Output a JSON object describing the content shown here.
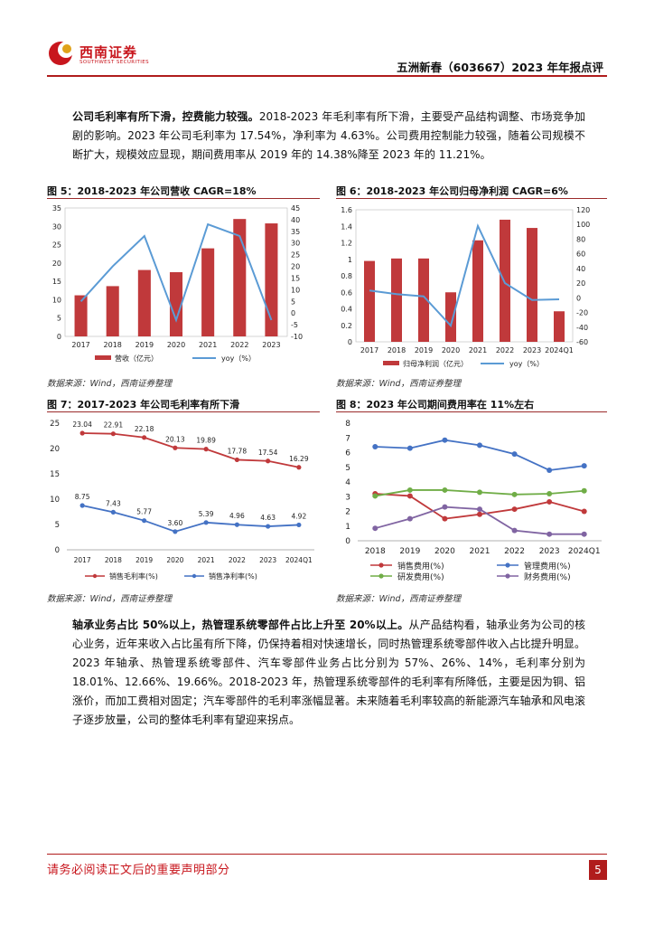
{
  "header": {
    "logo_text": "西南证券",
    "logo_sub": "SOUTHWEST SECURITIES",
    "title": "五洲新春（603667）2023 年年报点评"
  },
  "para1": {
    "bold": "公司毛利率有所下滑，控费能力较强。",
    "text": "2018-2023 年毛利率有所下滑，主要受产品结构调整、市场竞争加剧的影响。2023 年公司毛利率为 17.54%，净利率为 4.63%。公司费用控制能力较强，随着公司规模不断扩大，规模效应显现，期间费用率从 2019 年的 14.38%降至 2023 年的 11.21%。"
  },
  "para2": {
    "bold": "轴承业务占比 50%以上，热管理系统零部件占比上升至 20%以上。",
    "text": "从产品结构看，轴承业务为公司的核心业务，近年来收入占比虽有所下降，仍保持着相对快速增长，同时热管理系统零部件收入占比提升明显。2023 年轴承、热管理系统零部件、汽车零部件业务占比分别为 57%、26%、14%，毛利率分别为 18.01%、12.66%、19.66%。2018-2023 年，热管理系统零部件的毛利率有所降低，主要是因为铜、铝涨价，而加工费相对固定；汽车零部件的毛利率涨幅显著。未来随着毛利率较高的新能源汽车轴承和风电滚子逐步放量，公司的整体毛利率有望迎来拐点。"
  },
  "figures": {
    "f5_title": "图 5：2018-2023 年公司营收 CAGR=18%",
    "f6_title": "图 6：2018-2023 年公司归母净利润 CAGR=6%",
    "f7_title": "图 7：2017-2023 年公司毛利率有所下滑",
    "f8_title": "图 8：2023 年公司期间费用率在 11%左右",
    "source": "数据来源：Wind，西南证券整理"
  },
  "footer": {
    "notice": "请务必阅读正文后的重要声明部分",
    "page": "5"
  },
  "colors": {
    "bar_red": "#c0393b",
    "line_blue": "#5b9bd5",
    "brand_red": "#c8161d"
  },
  "chart_data": [
    {
      "id": "f5",
      "type": "bar+line",
      "categories": [
        "2017",
        "2018",
        "2019",
        "2020",
        "2021",
        "2022",
        "2023"
      ],
      "series": [
        {
          "name": "营收（亿元）",
          "type": "bar",
          "axis": "left",
          "values": [
            11.2,
            13.7,
            18.1,
            17.5,
            24.0,
            32.0,
            30.8
          ]
        },
        {
          "name": "yoy（%）",
          "type": "line",
          "axis": "right",
          "values": [
            5,
            20,
            33,
            -3,
            38,
            33,
            -3
          ]
        }
      ],
      "left_ylim": [
        0,
        35
      ],
      "left_ticks": [
        0,
        5,
        10,
        15,
        20,
        25,
        30,
        35
      ],
      "right_ylim": [
        -10,
        45
      ],
      "right_ticks": [
        -10,
        -5,
        0,
        5,
        10,
        15,
        20,
        25,
        30,
        35,
        40,
        45
      ],
      "legend": [
        "营收（亿元）",
        "yoy（%）"
      ]
    },
    {
      "id": "f6",
      "type": "bar+line",
      "categories": [
        "2017",
        "2018",
        "2019",
        "2020",
        "2021",
        "2022",
        "2023",
        "2024Q1"
      ],
      "series": [
        {
          "name": "归母净利润（亿元）",
          "type": "bar",
          "axis": "left",
          "values": [
            0.98,
            1.01,
            1.01,
            0.6,
            1.23,
            1.48,
            1.38,
            0.37
          ]
        },
        {
          "name": "yoy（%）",
          "type": "line",
          "axis": "right",
          "values": [
            10,
            5,
            2,
            -38,
            98,
            20,
            -3,
            -2
          ]
        }
      ],
      "left_ylim": [
        0,
        1.6
      ],
      "left_ticks": [
        0,
        0.2,
        0.4,
        0.6,
        0.8,
        1,
        1.2,
        1.4,
        1.6
      ],
      "right_ylim": [
        -60,
        120
      ],
      "right_ticks": [
        -60,
        -40,
        -20,
        0,
        20,
        40,
        60,
        80,
        100,
        120
      ],
      "legend": [
        "归母净利润（亿元）",
        "yoy（%）"
      ]
    },
    {
      "id": "f7",
      "type": "line",
      "categories": [
        "2017",
        "2018",
        "2019",
        "2020",
        "2021",
        "2022",
        "2023",
        "2024Q1"
      ],
      "ylim": [
        0,
        25
      ],
      "yticks": [
        0,
        5,
        10,
        15,
        20,
        25
      ],
      "series": [
        {
          "name": "销售毛利率(%)",
          "color": "#c0393b",
          "values": [
            23.04,
            22.91,
            22.18,
            20.13,
            19.89,
            17.78,
            17.54,
            16.29
          ],
          "labels": [
            "23.04",
            "22.91",
            "22.18",
            "20.13",
            "19.89",
            "17.78",
            "17.54",
            "16.29"
          ]
        },
        {
          "name": "销售净利率(%)",
          "color": "#4472c4",
          "values": [
            8.75,
            7.43,
            5.77,
            3.6,
            5.39,
            4.96,
            4.63,
            4.92
          ],
          "labels": [
            "8.75",
            "7.43",
            "5.77",
            "3.60",
            "5.39",
            "4.96",
            "4.63",
            "4.92"
          ]
        }
      ]
    },
    {
      "id": "f8",
      "type": "line",
      "categories": [
        "2018",
        "2019",
        "2020",
        "2021",
        "2022",
        "2023",
        "2024Q1"
      ],
      "ylim": [
        0,
        8
      ],
      "yticks": [
        0,
        1,
        2,
        3,
        4,
        5,
        6,
        7,
        8
      ],
      "series": [
        {
          "name": "销售费用(%)",
          "color": "#c0393b",
          "values": [
            3.2,
            3.05,
            1.5,
            1.8,
            2.15,
            2.65,
            2.0
          ]
        },
        {
          "name": "管理费用(%)",
          "color": "#4472c4",
          "values": [
            6.4,
            6.3,
            6.85,
            6.5,
            5.9,
            4.8,
            5.1
          ]
        },
        {
          "name": "研发费用(%)",
          "color": "#70ad47",
          "values": [
            3.05,
            3.45,
            3.45,
            3.3,
            3.15,
            3.2,
            3.4
          ]
        },
        {
          "name": "财务费用(%)",
          "color": "#8064a2",
          "values": [
            0.85,
            1.5,
            2.3,
            2.15,
            0.7,
            0.45,
            0.45
          ]
        }
      ]
    }
  ]
}
